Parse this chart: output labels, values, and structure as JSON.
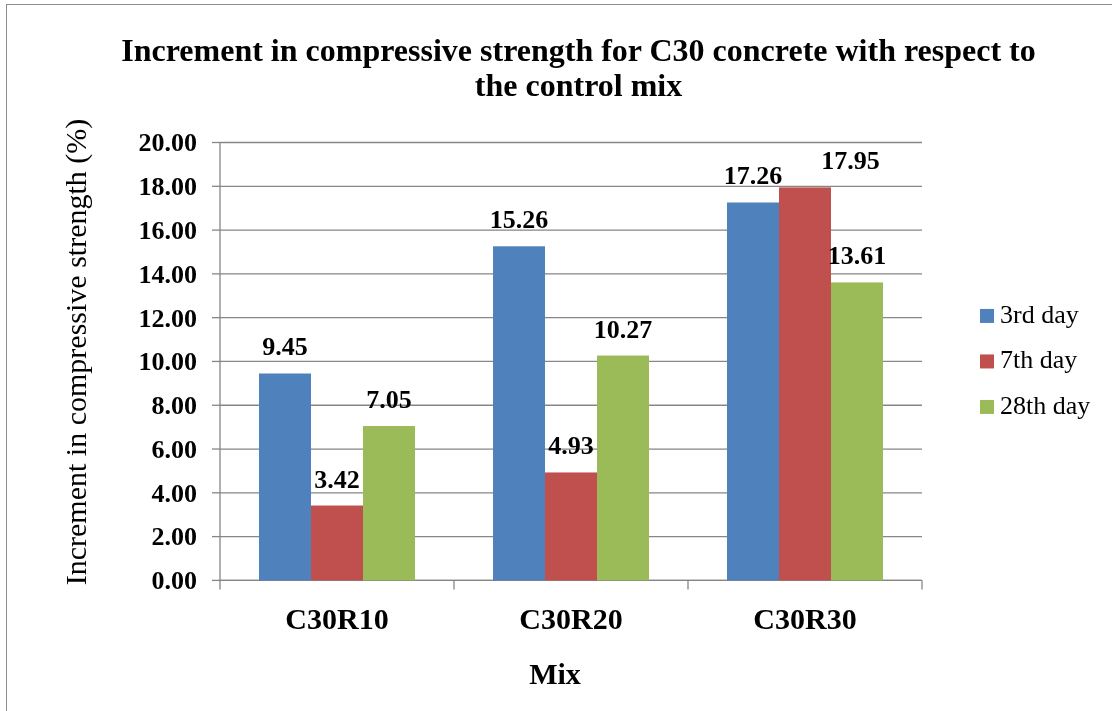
{
  "chart_data": {
    "type": "bar",
    "title": "Increment in compressive strength for C30 concrete with respect to the control mix",
    "xlabel": "Mix",
    "ylabel": "Increment in compressive strength (%)",
    "categories": [
      "C30R10",
      "C30R20",
      "C30R30"
    ],
    "series": [
      {
        "name": "3rd day",
        "color": "#4f81bd",
        "values": [
          9.45,
          15.26,
          17.26
        ]
      },
      {
        "name": "7th day",
        "color": "#c0504d",
        "values": [
          3.42,
          4.93,
          17.95
        ]
      },
      {
        "name": "28th day",
        "color": "#9bbb59",
        "values": [
          7.05,
          10.27,
          13.61
        ]
      }
    ],
    "ylim": [
      0,
      20
    ],
    "yticks": [
      {
        "value": 0,
        "label": "0.00"
      },
      {
        "value": 2,
        "label": "2.00"
      },
      {
        "value": 4,
        "label": "4.00"
      },
      {
        "value": 6,
        "label": "6.00"
      },
      {
        "value": 8,
        "label": "8.00"
      },
      {
        "value": 10,
        "label": "10.00"
      },
      {
        "value": 12,
        "label": "12.00"
      },
      {
        "value": 14,
        "label": "14.00"
      },
      {
        "value": 16,
        "label": "16.00"
      },
      {
        "value": 18,
        "label": "18.00"
      },
      {
        "value": 20,
        "label": "20.00"
      }
    ],
    "grid": "y",
    "legend": "right",
    "data_labels": true
  }
}
